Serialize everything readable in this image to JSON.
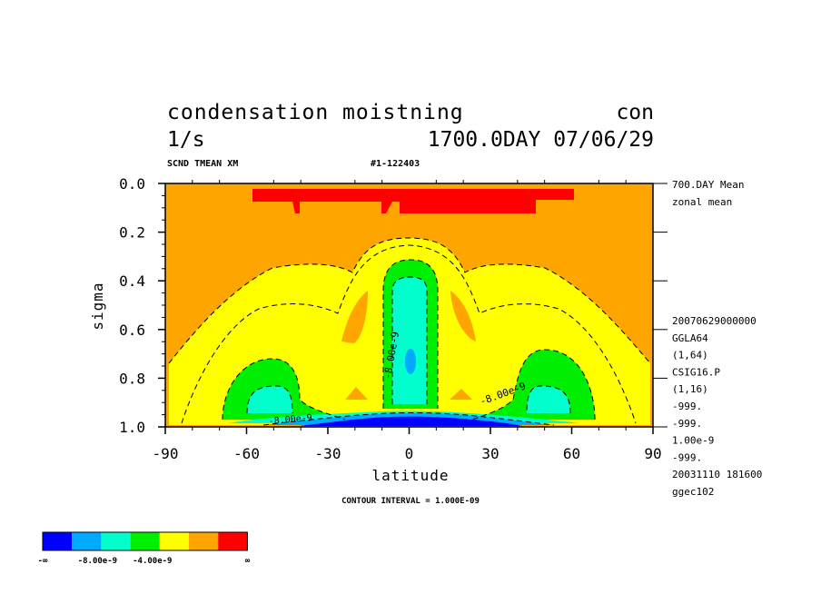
{
  "title_line1_left": "condensation moistning",
  "title_line1_right": "con",
  "title_line2_left": "1/s",
  "title_line2_right": "1700.0DAY 07/06/29",
  "sub_left": "SCND TMEAN XM",
  "sub_right": "#1-122403",
  "right_info": {
    "mean": "700.DAY Mean",
    "zonal": "zonal mean",
    "lines": [
      "20070629000000",
      "GGLA64",
      "(1,64)",
      "CSIG16.P",
      "(1,16)",
      "-999.",
      "-999.",
      "1.00e-9",
      "-999.",
      "20031110 181600",
      "ggec102"
    ]
  },
  "contour_interval": "CONTOUR INTERVAL = 1.000E-09",
  "contour_labels": [
    "-8.00e-9",
    "-8.00e-9",
    "-8.00e-9"
  ],
  "legend": {
    "labels": [
      "-∞",
      "-8.00e-9",
      "-4.00e-9",
      "∞"
    ],
    "colors": [
      "#0000ff",
      "#00aaff",
      "#00ffcc",
      "#00ee00",
      "#ffff00",
      "#ffa500",
      "#ff0000"
    ]
  },
  "chart_data": {
    "type": "heatmap",
    "title": "condensation moistning",
    "xlabel": "latitude",
    "ylabel": "sigma",
    "xlim": [
      -90,
      90
    ],
    "ylim": [
      1.0,
      0.0
    ],
    "x_ticks": [
      "-90",
      "-60",
      "-30",
      "0",
      "30",
      "60",
      "90"
    ],
    "y_ticks": [
      "0.0",
      "0.2",
      "0.4",
      "0.6",
      "0.8",
      "1.0"
    ],
    "levels": [
      -8e-09,
      -4e-09
    ],
    "units": "1/s"
  }
}
